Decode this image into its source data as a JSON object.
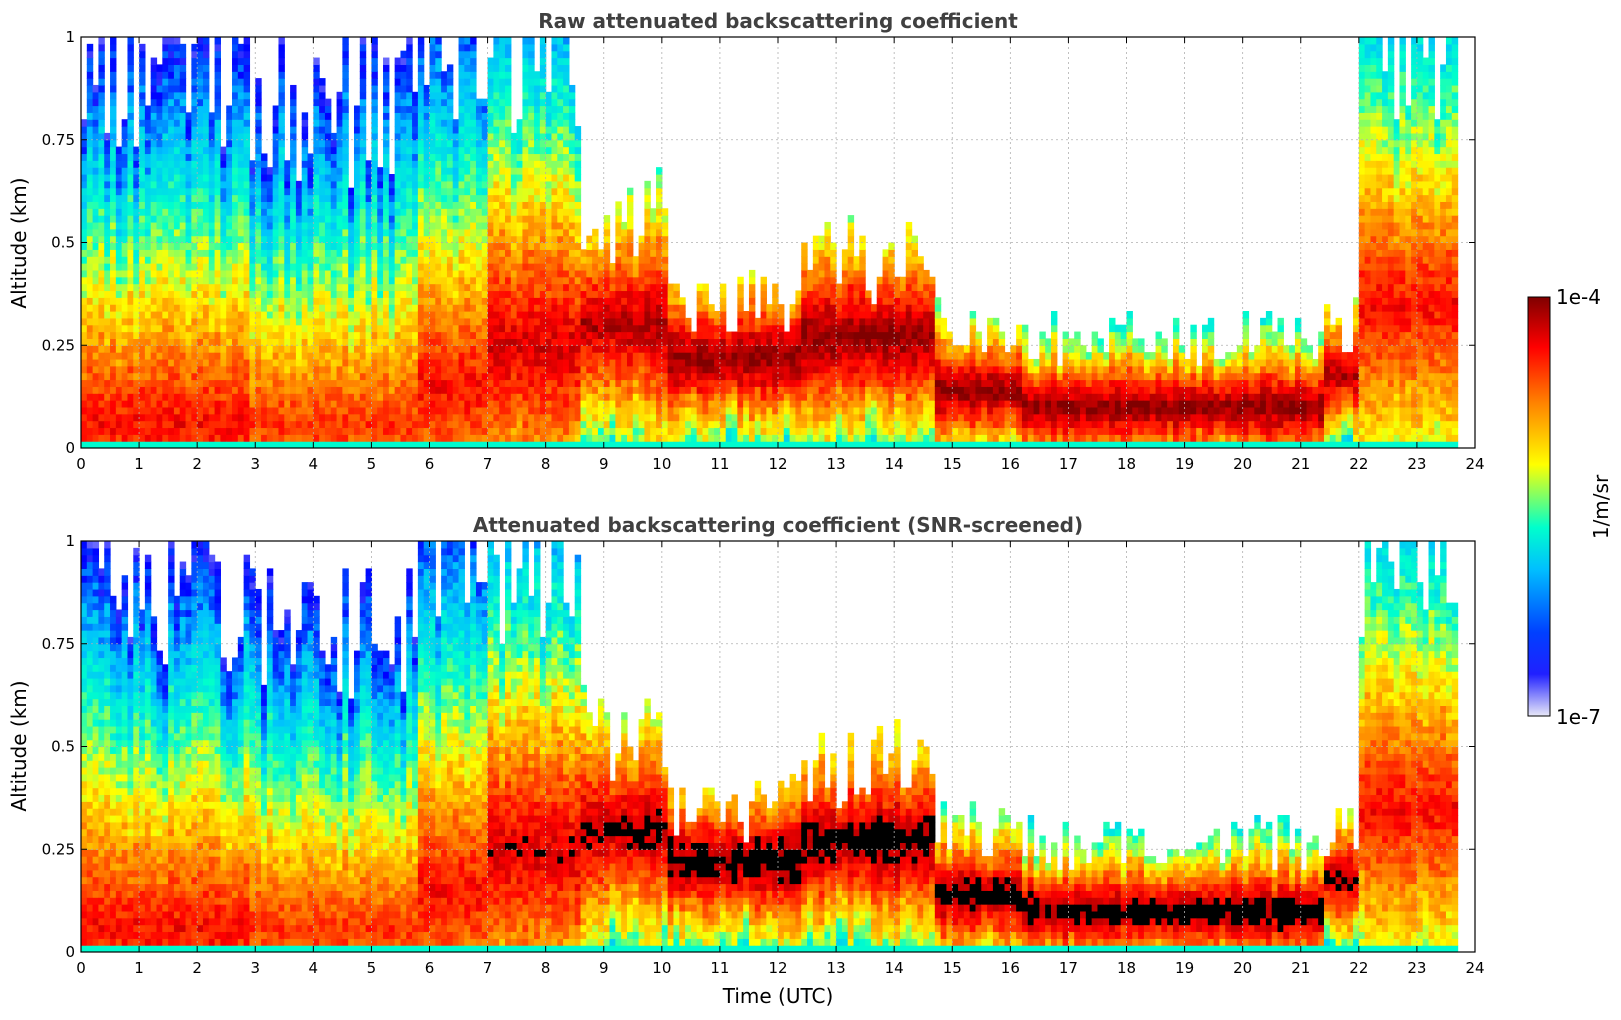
{
  "chart_data": [
    {
      "type": "heatmap",
      "title": "Raw attenuated backscattering coefficient",
      "xlabel": "",
      "ylabel": "Altitude (km)",
      "xlim": [
        0,
        24
      ],
      "ylim": [
        0,
        1
      ],
      "xticks": [
        "0",
        "1",
        "2",
        "3",
        "4",
        "5",
        "6",
        "7",
        "8",
        "9",
        "10",
        "11",
        "12",
        "13",
        "14",
        "15",
        "16",
        "17",
        "18",
        "19",
        "20",
        "21",
        "22",
        "23",
        "24"
      ],
      "yticks": [
        "0",
        "0.25",
        "0.5",
        "0.75",
        "1"
      ],
      "grid": true,
      "screened": false,
      "segments": [
        {
          "t0": 0.0,
          "t1": 2.9,
          "top": 0.95,
          "peak": 0.06,
          "intensity": 0.85
        },
        {
          "t0": 2.9,
          "t1": 5.8,
          "top": 0.85,
          "peak": 0.06,
          "intensity": 0.8
        },
        {
          "t0": 5.8,
          "t1": 7.0,
          "top": 1.0,
          "peak": 0.15,
          "intensity": 0.85
        },
        {
          "t0": 7.0,
          "t1": 8.6,
          "top": 1.0,
          "peak": 0.25,
          "intensity": 0.9
        },
        {
          "t0": 8.6,
          "t1": 10.1,
          "top": 0.55,
          "peak": 0.3,
          "intensity": 0.95
        },
        {
          "t0": 10.1,
          "t1": 12.4,
          "top": 0.35,
          "peak": 0.22,
          "intensity": 1.0
        },
        {
          "t0": 12.4,
          "t1": 14.7,
          "top": 0.45,
          "peak": 0.27,
          "intensity": 1.0
        },
        {
          "t0": 14.7,
          "t1": 16.2,
          "top": 0.3,
          "peak": 0.14,
          "intensity": 1.0
        },
        {
          "t0": 16.2,
          "t1": 21.4,
          "top": 0.27,
          "peak": 0.1,
          "intensity": 1.0
        },
        {
          "t0": 21.4,
          "t1": 22.0,
          "top": 0.3,
          "peak": 0.18,
          "intensity": 0.95
        },
        {
          "t0": 22.0,
          "t1": 23.75,
          "top": 1.0,
          "peak": 0.35,
          "intensity": 0.85
        }
      ]
    },
    {
      "type": "heatmap",
      "title": "Attenuated backscattering coefficient (SNR-screened)",
      "xlabel": "Time (UTC)",
      "ylabel": "Altitude (km)",
      "xlim": [
        0,
        24
      ],
      "ylim": [
        0,
        1
      ],
      "xticks": [
        "0",
        "1",
        "2",
        "3",
        "4",
        "5",
        "6",
        "7",
        "8",
        "9",
        "10",
        "11",
        "12",
        "13",
        "14",
        "15",
        "16",
        "17",
        "18",
        "19",
        "20",
        "21",
        "22",
        "23",
        "24"
      ],
      "yticks": [
        "0",
        "0.25",
        "0.5",
        "0.75",
        "1"
      ],
      "grid": true,
      "screened": true,
      "segments": [
        {
          "t0": 0.0,
          "t1": 2.9,
          "top": 0.9,
          "peak": 0.06,
          "intensity": 0.85
        },
        {
          "t0": 2.9,
          "t1": 5.8,
          "top": 0.82,
          "peak": 0.06,
          "intensity": 0.8
        },
        {
          "t0": 5.8,
          "t1": 7.0,
          "top": 1.0,
          "peak": 0.15,
          "intensity": 0.85
        },
        {
          "t0": 7.0,
          "t1": 8.6,
          "top": 1.0,
          "peak": 0.25,
          "intensity": 0.9
        },
        {
          "t0": 8.6,
          "t1": 10.1,
          "top": 0.55,
          "peak": 0.3,
          "intensity": 0.95
        },
        {
          "t0": 10.1,
          "t1": 12.4,
          "top": 0.35,
          "peak": 0.22,
          "intensity": 1.0
        },
        {
          "t0": 12.4,
          "t1": 14.7,
          "top": 0.45,
          "peak": 0.27,
          "intensity": 1.0
        },
        {
          "t0": 14.7,
          "t1": 16.2,
          "top": 0.3,
          "peak": 0.14,
          "intensity": 1.0
        },
        {
          "t0": 16.2,
          "t1": 21.4,
          "top": 0.27,
          "peak": 0.1,
          "intensity": 1.0
        },
        {
          "t0": 21.4,
          "t1": 22.0,
          "top": 0.3,
          "peak": 0.18,
          "intensity": 0.95
        },
        {
          "t0": 22.0,
          "t1": 23.75,
          "top": 1.0,
          "peak": 0.35,
          "intensity": 0.85
        }
      ]
    }
  ],
  "colorbar": {
    "label": "1/m/sr",
    "max_label": "1e-4",
    "min_label": "1e-7",
    "scale": "log",
    "colors": [
      "#e8e8f8",
      "#0000ff",
      "#00bfff",
      "#00ffcc",
      "#ffff00",
      "#ff8000",
      "#ff0000",
      "#800000"
    ]
  }
}
